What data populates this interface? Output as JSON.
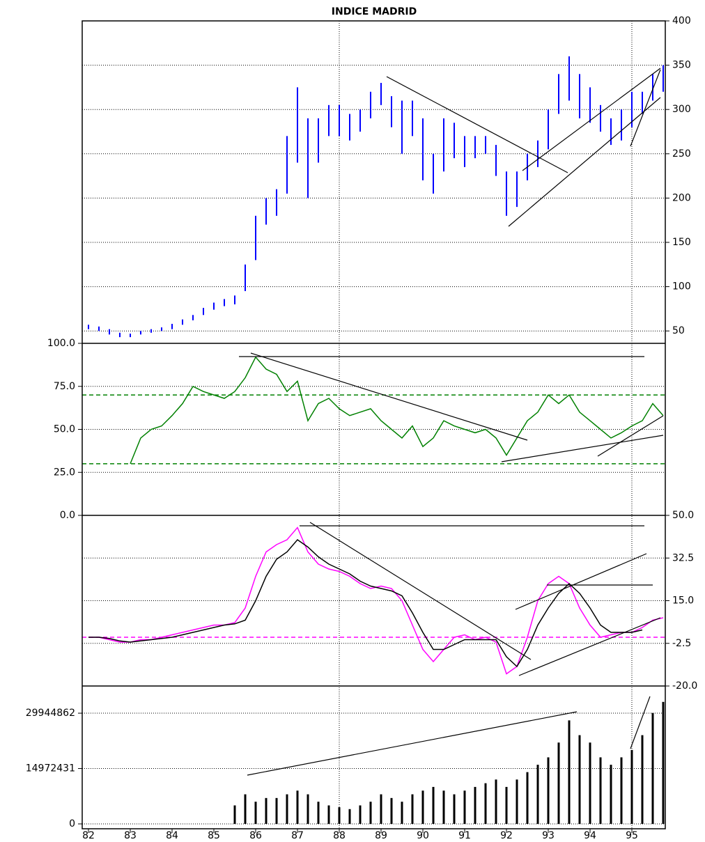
{
  "chart_data": [
    {
      "type": "hilo",
      "title": "INDICE MADRID",
      "color": "#0000ff",
      "axis_side": "right",
      "grid": true,
      "x": [
        82.0,
        82.25,
        82.5,
        82.75,
        83.0,
        83.25,
        83.5,
        83.75,
        84.0,
        84.25,
        84.5,
        84.75,
        85.0,
        85.25,
        85.5,
        85.75,
        86.0,
        86.25,
        86.5,
        86.75,
        87.0,
        87.25,
        87.5,
        87.75,
        88.0,
        88.25,
        88.5,
        88.75,
        89.0,
        89.25,
        89.5,
        89.75,
        90.0,
        90.25,
        90.5,
        90.75,
        91.0,
        91.25,
        91.5,
        91.75,
        92.0,
        92.25,
        92.5,
        92.75,
        93.0,
        93.25,
        93.5,
        93.75,
        94.0,
        94.25,
        94.5,
        94.75,
        95.0,
        95.25,
        95.5,
        95.75
      ],
      "high": [
        57,
        55,
        52,
        48,
        47,
        50,
        52,
        54,
        58,
        63,
        68,
        76,
        82,
        86,
        90,
        125,
        180,
        200,
        210,
        270,
        325,
        290,
        290,
        305,
        305,
        295,
        300,
        320,
        330,
        315,
        310,
        310,
        290,
        250,
        290,
        285,
        270,
        270,
        270,
        260,
        230,
        230,
        250,
        265,
        300,
        340,
        360,
        340,
        325,
        305,
        290,
        300,
        320,
        320,
        340,
        350
      ],
      "low": [
        52,
        50,
        46,
        43,
        43,
        46,
        48,
        50,
        52,
        57,
        62,
        68,
        74,
        78,
        80,
        95,
        130,
        170,
        180,
        205,
        240,
        200,
        240,
        270,
        270,
        265,
        275,
        290,
        305,
        280,
        250,
        270,
        220,
        205,
        230,
        245,
        235,
        245,
        250,
        225,
        180,
        190,
        220,
        235,
        255,
        295,
        310,
        290,
        285,
        275,
        260,
        265,
        280,
        295,
        310,
        320
      ],
      "ylim": [
        36,
        400
      ],
      "yticks": [
        50,
        100,
        150,
        200,
        250,
        300,
        350,
        400
      ]
    },
    {
      "type": "line",
      "axis_side": "left",
      "grid": true,
      "series": [
        {
          "color": "#008000",
          "values": [
            null,
            null,
            null,
            null,
            30,
            45,
            50,
            52,
            58,
            65,
            75,
            72,
            70,
            68,
            72,
            80,
            92,
            85,
            82,
            72,
            78,
            55,
            65,
            68,
            62,
            58,
            60,
            62,
            55,
            50,
            45,
            52,
            40,
            45,
            55,
            52,
            50,
            48,
            50,
            45,
            35,
            45,
            55,
            60,
            70,
            65,
            70,
            60,
            55,
            50,
            45,
            48,
            52,
            55,
            65,
            58
          ]
        }
      ],
      "levels": [
        70,
        30
      ],
      "level_color": "#008000",
      "ylim": [
        0,
        100
      ],
      "yticks": [
        {
          "value": 0,
          "label": "0.0"
        },
        {
          "value": 25,
          "label": "25.0"
        },
        {
          "value": 50,
          "label": "50.0"
        },
        {
          "value": 75,
          "label": "75.0"
        },
        {
          "value": 100,
          "label": "100.0"
        }
      ]
    },
    {
      "type": "line",
      "axis_side": "right",
      "grid": true,
      "series": [
        {
          "color": "#ff00ff",
          "values": [
            0,
            0,
            -1,
            -2,
            -2,
            -1,
            -1,
            0,
            1,
            2,
            3,
            4,
            5,
            5,
            6,
            12,
            25,
            35,
            38,
            40,
            45,
            35,
            30,
            28,
            27,
            25,
            22,
            20,
            21,
            20,
            15,
            5,
            -5,
            -10,
            -5,
            0,
            1,
            -1,
            0,
            -2,
            -15,
            -12,
            0,
            15,
            22,
            25,
            22,
            12,
            5,
            0,
            1,
            2,
            2,
            4,
            7,
            8
          ]
        },
        {
          "color": "#000000",
          "values": [
            0,
            0,
            -0.5,
            -1.5,
            -2,
            -1.5,
            -1,
            -0.5,
            0,
            1,
            2,
            3,
            4,
            5,
            5.5,
            7,
            15,
            25,
            32,
            35,
            40,
            37,
            33,
            30,
            28,
            26,
            23,
            21,
            20,
            19,
            17,
            10,
            2,
            -5,
            -5,
            -3,
            -1,
            -1,
            -1,
            -1,
            -8,
            -12,
            -5,
            5,
            12,
            18,
            22,
            18,
            12,
            5,
            2,
            2,
            2,
            3,
            null,
            null
          ]
        }
      ],
      "levels": [
        0
      ],
      "level_color": "#ff00ff",
      "ylim": [
        -20,
        50
      ],
      "yticks": [
        {
          "value": -20,
          "label": "-20.0"
        },
        -2.5,
        {
          "value": 15,
          "label": "15.0"
        },
        32.5,
        {
          "value": 50,
          "label": "50.0"
        }
      ]
    },
    {
      "type": "bar",
      "color": "#000000",
      "axis_side": "left",
      "grid": true,
      "values": [
        null,
        null,
        null,
        null,
        null,
        null,
        null,
        null,
        null,
        null,
        null,
        null,
        null,
        null,
        5000000,
        8000000,
        6000000,
        7000000,
        7000000,
        8000000,
        9000000,
        8000000,
        6000000,
        5000000,
        4500000,
        4000000,
        5000000,
        6000000,
        8000000,
        7000000,
        6000000,
        8000000,
        9000000,
        10000000,
        9000000,
        8000000,
        9000000,
        10000000,
        11000000,
        12000000,
        10000000,
        12000000,
        14000000,
        16000000,
        18000000,
        22000000,
        28000000,
        24000000,
        22000000,
        18000000,
        16000000,
        18000000,
        20000000,
        24000000,
        30000000,
        33000000
      ],
      "ylim": [
        0,
        37300000
      ],
      "yticks": [
        0,
        14972431,
        29944862
      ],
      "xlim": [
        81.85,
        95.8
      ],
      "xticks": [
        82,
        83,
        84,
        85,
        86,
        87,
        88,
        89,
        90,
        91,
        92,
        93,
        94,
        95
      ],
      "xgrid": [
        88,
        95
      ]
    }
  ]
}
